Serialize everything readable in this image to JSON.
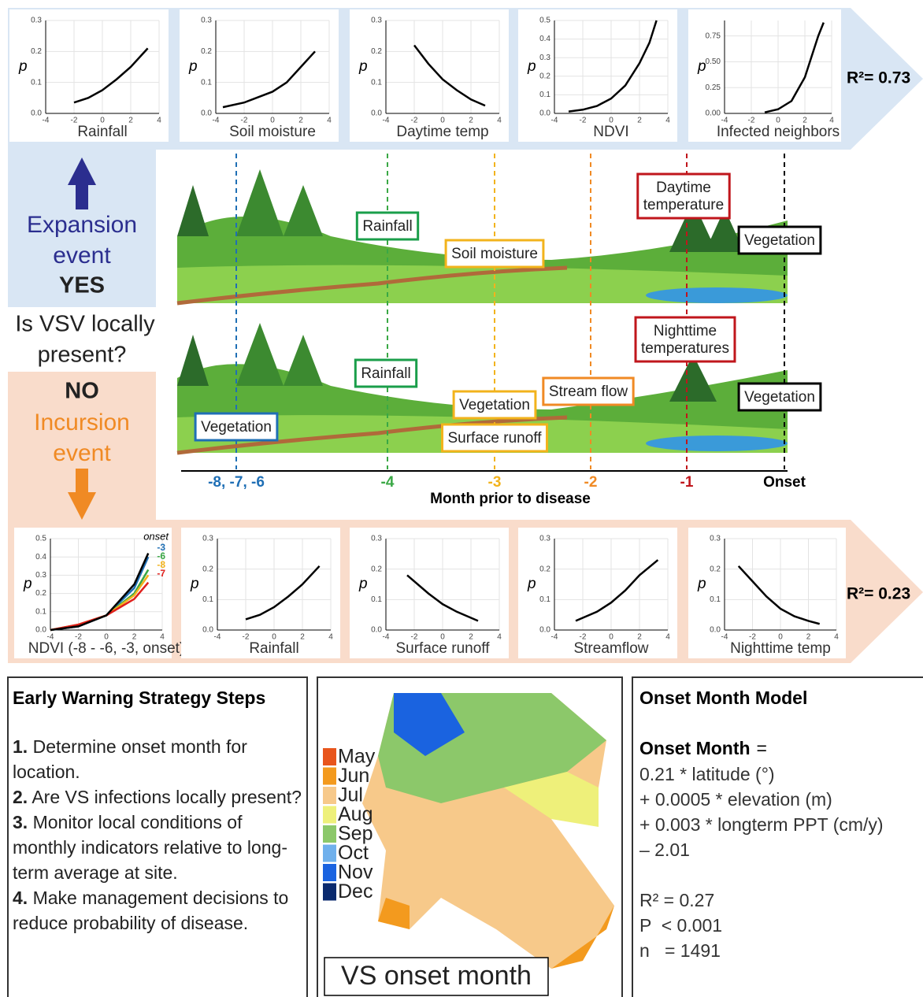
{
  "top_panel": {
    "r2": "R²= 0.73",
    "charts": [
      {
        "type": "line",
        "xlabel": "Rainfall",
        "ylabel": "p",
        "xlim": [
          -4,
          4
        ],
        "ylim": [
          0,
          0.3
        ],
        "xticks": [
          -4,
          -2,
          0,
          2,
          4
        ],
        "yticks": [
          {
            "value": 0,
            "label": "0.0"
          },
          0.1,
          0.2,
          0.3
        ],
        "series": [
          {
            "color": "#000000",
            "x": [
              -2,
              -1,
              0,
              1,
              2,
              3.2
            ],
            "values": [
              0.035,
              0.05,
              0.075,
              0.11,
              0.15,
              0.21
            ]
          }
        ]
      },
      {
        "type": "line",
        "xlabel": "Soil moisture",
        "ylabel": "p",
        "xlim": [
          -4,
          4
        ],
        "ylim": [
          0,
          0.3
        ],
        "xticks": [
          -4,
          -2,
          0,
          2,
          4
        ],
        "yticks": [
          {
            "value": 0,
            "label": "0.0"
          },
          0.1,
          0.2,
          0.3
        ],
        "series": [
          {
            "color": "#000000",
            "x": [
              -3.5,
              -2,
              0,
              1,
              2,
              3
            ],
            "values": [
              0.02,
              0.035,
              0.07,
              0.1,
              0.15,
              0.2
            ]
          }
        ]
      },
      {
        "type": "line",
        "xlabel": "Daytime temp",
        "ylabel": "p",
        "xlim": [
          -4,
          4
        ],
        "ylim": [
          0,
          0.3
        ],
        "xticks": [
          -4,
          -2,
          0,
          2,
          4
        ],
        "yticks": [
          {
            "value": 0,
            "label": "0.0"
          },
          0.1,
          0.2,
          0.3
        ],
        "series": [
          {
            "color": "#000000",
            "x": [
              -2,
              -1,
              0,
              1,
              2,
              3
            ],
            "values": [
              0.22,
              0.16,
              0.11,
              0.075,
              0.045,
              0.025
            ]
          }
        ]
      },
      {
        "type": "line",
        "xlabel": "NDVI",
        "ylabel": "p",
        "xlim": [
          -4,
          4
        ],
        "ylim": [
          0,
          0.5
        ],
        "xticks": [
          -4,
          -2,
          0,
          2,
          4
        ],
        "yticks": [
          {
            "value": 0,
            "label": "0.0"
          },
          0.1,
          0.2,
          0.3,
          0.4,
          0.5
        ],
        "series": [
          {
            "color": "#000000",
            "x": [
              -3,
              -2,
              -1,
              0,
              1,
              2,
              2.7,
              3.2
            ],
            "values": [
              0.01,
              0.02,
              0.04,
              0.08,
              0.15,
              0.27,
              0.38,
              0.5
            ]
          }
        ]
      },
      {
        "type": "line",
        "xlabel": "Infected neighbors",
        "ylabel": "p",
        "xlim": [
          -4,
          4
        ],
        "ylim": [
          0,
          0.9
        ],
        "xticks": [
          -4,
          -2,
          0,
          2,
          4
        ],
        "yticks": [
          {
            "value": 0,
            "label": "0.00"
          },
          0.25,
          {
            "value": 0.5,
            "label": "0.50"
          },
          0.75
        ],
        "series": [
          {
            "color": "#000000",
            "x": [
              -1,
              0,
              1,
              2,
              2.5,
              3,
              3.4
            ],
            "values": [
              0.01,
              0.04,
              0.12,
              0.35,
              0.55,
              0.75,
              0.88
            ]
          }
        ]
      }
    ]
  },
  "bottom_panel": {
    "r2": "R²= 0.23",
    "charts": [
      {
        "type": "line",
        "xlabel": "NDVI (-8 - -6, -3, onset)",
        "ylabel": "p",
        "legend_title": "onset",
        "xlim": [
          -4,
          4
        ],
        "ylim": [
          0,
          0.5
        ],
        "xticks": [
          -4,
          -2,
          0,
          2,
          4
        ],
        "yticks": [
          {
            "value": 0,
            "label": "0.0"
          },
          0.1,
          0.2,
          0.3,
          0.4,
          0.5
        ],
        "series": [
          {
            "name": "-3",
            "color": "#1f6fb5",
            "x": [
              -4,
              -2,
              0,
              2,
              3
            ],
            "values": [
              0,
              0.02,
              0.08,
              0.23,
              0.4
            ]
          },
          {
            "name": "-6",
            "color": "#3aa845",
            "x": [
              -4,
              -2,
              0,
              2,
              3
            ],
            "values": [
              0,
              0.025,
              0.08,
              0.2,
              0.33
            ]
          },
          {
            "name": "-8",
            "color": "#f2b31c",
            "x": [
              -4,
              -2,
              0,
              2,
              3
            ],
            "values": [
              0,
              0.03,
              0.08,
              0.19,
              0.3
            ]
          },
          {
            "name": "-7",
            "color": "#e0201c",
            "x": [
              -4,
              -2,
              0,
              2,
              3
            ],
            "values": [
              0,
              0.03,
              0.08,
              0.17,
              0.26
            ]
          },
          {
            "color": "#000000",
            "x": [
              -4,
              -2,
              0,
              2,
              3
            ],
            "values": [
              0,
              0.02,
              0.08,
              0.25,
              0.42
            ]
          }
        ]
      },
      {
        "type": "line",
        "xlabel": "Rainfall",
        "ylabel": "p",
        "xlim": [
          -4,
          4
        ],
        "ylim": [
          0,
          0.3
        ],
        "xticks": [
          -4,
          -2,
          0,
          2,
          4
        ],
        "yticks": [
          {
            "value": 0,
            "label": "0.0"
          },
          0.1,
          0.2,
          0.3
        ],
        "series": [
          {
            "color": "#000000",
            "x": [
              -2,
              -1,
              0,
              1,
              2,
              3.2
            ],
            "values": [
              0.035,
              0.05,
              0.075,
              0.11,
              0.15,
              0.21
            ]
          }
        ]
      },
      {
        "type": "line",
        "xlabel": "Surface runoff",
        "ylabel": "p",
        "xlim": [
          -4,
          4
        ],
        "ylim": [
          0,
          0.3
        ],
        "xticks": [
          -4,
          -2,
          0,
          2,
          4
        ],
        "yticks": [
          {
            "value": 0,
            "label": "0.0"
          },
          0.1,
          0.2,
          0.3
        ],
        "series": [
          {
            "color": "#000000",
            "x": [
              -2.5,
              -1,
              0,
              1,
              2,
              2.5
            ],
            "values": [
              0.18,
              0.12,
              0.085,
              0.06,
              0.04,
              0.03
            ]
          }
        ]
      },
      {
        "type": "line",
        "xlabel": "Streamflow",
        "ylabel": "p",
        "xlim": [
          -4,
          4
        ],
        "ylim": [
          0,
          0.3
        ],
        "xticks": [
          -4,
          -2,
          0,
          2,
          4
        ],
        "yticks": [
          {
            "value": 0,
            "label": "0.0"
          },
          0.1,
          0.2,
          0.3
        ],
        "series": [
          {
            "color": "#000000",
            "x": [
              -2.5,
              -1,
              0,
              1,
              2,
              3.3
            ],
            "values": [
              0.03,
              0.06,
              0.09,
              0.13,
              0.18,
              0.23
            ]
          }
        ]
      },
      {
        "type": "line",
        "xlabel": "Nighttime temp",
        "ylabel": "p",
        "xlim": [
          -4,
          4
        ],
        "ylim": [
          0,
          0.3
        ],
        "xticks": [
          -4,
          -2,
          0,
          2,
          4
        ],
        "yticks": [
          {
            "value": 0,
            "label": "0.0"
          },
          0.1,
          0.2,
          0.3
        ],
        "series": [
          {
            "color": "#000000",
            "x": [
              -3,
              -2,
              -1,
              0,
              1,
              2,
              2.8
            ],
            "values": [
              0.21,
              0.16,
              0.11,
              0.07,
              0.045,
              0.03,
              0.02
            ]
          }
        ]
      }
    ]
  },
  "left": {
    "expansion": [
      "Expansion",
      "event"
    ],
    "yes": "YES",
    "question": [
      "Is VSV locally",
      "present?"
    ],
    "no": "NO",
    "incursion": [
      "Incursion",
      "event"
    ]
  },
  "landscape": {
    "top_labels": [
      {
        "lines": [
          "Rainfall"
        ],
        "color": "#1a9e4a"
      },
      {
        "lines": [
          "Soil moisture"
        ],
        "color": "#f2b31c"
      },
      {
        "lines": [
          "Daytime",
          "temperature"
        ],
        "color": "#c0161c"
      },
      {
        "lines": [
          "Vegetation"
        ],
        "color": "#000000"
      }
    ],
    "bottom_labels": [
      {
        "lines": [
          "Vegetation"
        ],
        "color": "#1f6fb5"
      },
      {
        "lines": [
          "Rainfall"
        ],
        "color": "#1a9e4a"
      },
      {
        "lines": [
          "Vegetation"
        ],
        "color": "#f2b31c"
      },
      {
        "lines": [
          "Surface runoff"
        ],
        "color": "#f2b31c"
      },
      {
        "lines": [
          "Stream flow"
        ],
        "color": "#f08a24"
      },
      {
        "lines": [
          "Nighttime",
          "temperatures"
        ],
        "color": "#c0161c"
      },
      {
        "lines": [
          "Vegetation"
        ],
        "color": "#000000"
      }
    ]
  },
  "timeline": {
    "title": "Month prior to disease",
    "ticks": [
      {
        "label": "-8, -7, -6",
        "color": "#1f6fb5"
      },
      {
        "label": "-4",
        "color": "#3aa845"
      },
      {
        "label": "-3",
        "color": "#f2b31c"
      },
      {
        "label": "-2",
        "color": "#f08a24"
      },
      {
        "label": "-1",
        "color": "#c0161c"
      },
      {
        "label": "Onset",
        "color": "#000000"
      }
    ]
  },
  "steps": {
    "title": "Early Warning Strategy Steps",
    "items": [
      {
        "number": "1.",
        "text": "Determine onset month for location."
      },
      {
        "number": "2.",
        "text": "Are VS infections locally present?"
      },
      {
        "number": "3.",
        "text": "Monitor local conditions of monthly indicators relative to long-term average at site."
      },
      {
        "number": "4.",
        "text": "Make management decisions to reduce probability of disease."
      }
    ]
  },
  "map": {
    "title": "VS onset month",
    "legend": [
      {
        "label": "May",
        "color": "#e8551c"
      },
      {
        "label": "Jun",
        "color": "#f39a1e"
      },
      {
        "label": "Jul",
        "color": "#f7c98a"
      },
      {
        "label": "Aug",
        "color": "#eef07a"
      },
      {
        "label": "Sep",
        "color": "#8cc86a"
      },
      {
        "label": "Oct",
        "color": "#6fb0ec"
      },
      {
        "label": "Nov",
        "color": "#1a63e0"
      },
      {
        "label": "Dec",
        "color": "#0a2a6e"
      }
    ]
  },
  "model": {
    "title": "Onset Month Model",
    "lhs": "Onset Month",
    "eq": "=",
    "lines": [
      "0.21 * latitude (°)",
      "+ 0.0005 * elevation (m)",
      "+ 0.003 * longterm PPT (cm/y)",
      "– 2.01"
    ],
    "stats": [
      "R² = 0.27",
      "P  < 0.001",
      "n   = 1491"
    ]
  }
}
